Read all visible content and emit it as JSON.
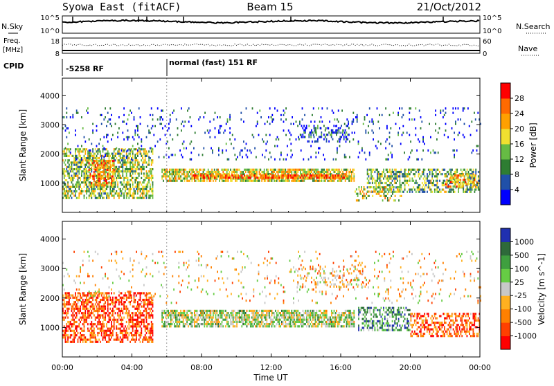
{
  "header": {
    "station": "Syowa East (fitACF)",
    "beam": "Beam 15",
    "date": "21/Oct/2012"
  },
  "status_panels": {
    "nsky": {
      "label": "N.Sky",
      "right_label": "N.Search",
      "ticks_left": [
        "10^5",
        "10^0"
      ],
      "ticks_right": [
        "10^5",
        "10^0"
      ]
    },
    "freq": {
      "label_line1": "Freq.",
      "label_line2": "[MHz]",
      "right_label": "Nave",
      "ticks_left": [
        "18",
        "8"
      ],
      "ticks_right": [
        "60",
        "0"
      ]
    },
    "cpid": {
      "label": "CPID",
      "segments": [
        "-5258 RF",
        "normal (fast) 151 RF"
      ]
    }
  },
  "chart_data": [
    {
      "type": "heatmap",
      "name": "power",
      "ylabel": "Slant Range [km]",
      "ylim": [
        0,
        4600
      ],
      "yticks": [
        1000,
        2000,
        3000,
        4000
      ],
      "colorbar": {
        "label": "Power [dB]",
        "ticks": [
          4,
          8,
          12,
          16,
          20,
          24,
          28
        ],
        "range": [
          0,
          30
        ],
        "colors": [
          "#0000ff",
          "#2050a8",
          "#2e7d32",
          "#66bb44",
          "#f0e030",
          "#ffa000",
          "#ff6a00",
          "#ff0000"
        ]
      },
      "echo_regions": [
        {
          "t0": 0.0,
          "t1": 5.2,
          "r0": 500,
          "r1": 2200,
          "density": 0.6,
          "level": 0.45
        },
        {
          "t0": 1.5,
          "t1": 3.0,
          "r0": 900,
          "r1": 1800,
          "density": 0.6,
          "level": 0.7
        },
        {
          "t0": 5.7,
          "t1": 16.8,
          "r0": 1100,
          "r1": 1500,
          "density": 0.75,
          "level": 0.55
        },
        {
          "t0": 7.5,
          "t1": 16.3,
          "r0": 1150,
          "r1": 1300,
          "density": 0.8,
          "level": 0.8
        },
        {
          "t0": 17.5,
          "t1": 24.0,
          "r0": 700,
          "r1": 1500,
          "density": 0.5,
          "level": 0.4
        },
        {
          "t0": 22.0,
          "t1": 23.8,
          "r0": 900,
          "r1": 1300,
          "density": 0.55,
          "level": 0.7
        },
        {
          "t0": 0.0,
          "t1": 24.0,
          "r0": 1800,
          "r1": 3600,
          "density": 0.07,
          "level": 0.15
        },
        {
          "t0": 13.5,
          "t1": 16.5,
          "r0": 2400,
          "r1": 3000,
          "density": 0.25,
          "level": 0.2
        },
        {
          "t0": 16.8,
          "t1": 19.5,
          "r0": 400,
          "r1": 900,
          "density": 0.3,
          "level": 0.55
        }
      ]
    },
    {
      "type": "heatmap",
      "name": "velocity",
      "xlabel": "Time UT",
      "ylabel": "Slant Range [km]",
      "ylim": [
        0,
        4600
      ],
      "yticks": [
        1000,
        2000,
        3000,
        4000
      ],
      "xticks": [
        "00:00",
        "04:00",
        "08:00",
        "12:00",
        "16:00",
        "20:00",
        "00:00"
      ],
      "xlim": [
        0,
        24
      ],
      "colorbar": {
        "label": "Velocity [m s^-1]",
        "ticks": [
          "1000",
          "500",
          "100",
          "25",
          "-25",
          "-100",
          "-500",
          "-1000"
        ],
        "colors": [
          "#2030b0",
          "#2e6a3a",
          "#3f9f3f",
          "#66cc44",
          "#c8c8c8",
          "#ffb020",
          "#ff8000",
          "#ff4000",
          "#ff0000"
        ]
      },
      "echo_regions": [
        {
          "t0": 0.0,
          "t1": 5.2,
          "r0": 500,
          "r1": 2200,
          "density": 0.55,
          "level": 0.85
        },
        {
          "t0": 5.7,
          "t1": 16.8,
          "r0": 1050,
          "r1": 1600,
          "density": 0.7,
          "level": 0.45
        },
        {
          "t0": 17.0,
          "t1": 20.0,
          "r0": 900,
          "r1": 1700,
          "density": 0.45,
          "level": 0.25
        },
        {
          "t0": 20.0,
          "t1": 24.0,
          "r0": 700,
          "r1": 1500,
          "density": 0.5,
          "level": 0.8
        },
        {
          "t0": 0.0,
          "t1": 24.0,
          "r0": 1800,
          "r1": 3600,
          "density": 0.06,
          "level": 0.6
        },
        {
          "t0": 13.5,
          "t1": 17.5,
          "r0": 2400,
          "r1": 3100,
          "density": 0.22,
          "level": 0.6
        }
      ]
    }
  ]
}
